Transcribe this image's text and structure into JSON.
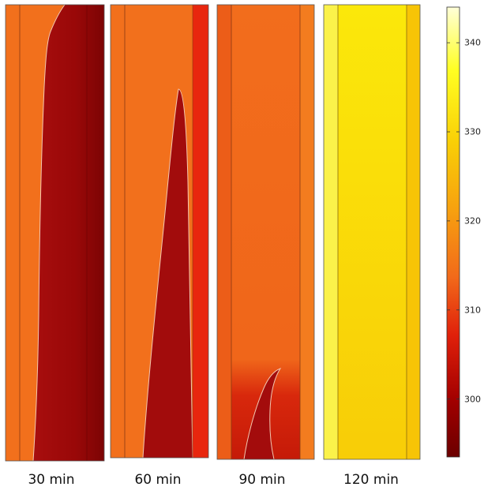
{
  "panels": [
    {
      "label": "30 min"
    },
    {
      "label": "60 min"
    },
    {
      "label": "90 min"
    },
    {
      "label": "120 min"
    }
  ],
  "colorbar": {
    "ticks": [
      {
        "value": 300,
        "label": "300"
      },
      {
        "value": 310,
        "label": "310"
      },
      {
        "value": 320,
        "label": "320"
      },
      {
        "value": 330,
        "label": "330"
      },
      {
        "value": 340,
        "label": "340"
      }
    ],
    "range": [
      293.5,
      344
    ],
    "colors": [
      "#6b0000",
      "#a30000",
      "#e0200a",
      "#f26a1a",
      "#f7a10f",
      "#f9cf06",
      "#ffff22",
      "#ffffd8"
    ]
  },
  "colors": {
    "background_orange": "#f2701c",
    "cold_region": "#9c0a0a",
    "cold_edge": "#7a0505",
    "panel_120_fill": "#f9d308",
    "interface_line": "#f2c7b0"
  }
}
